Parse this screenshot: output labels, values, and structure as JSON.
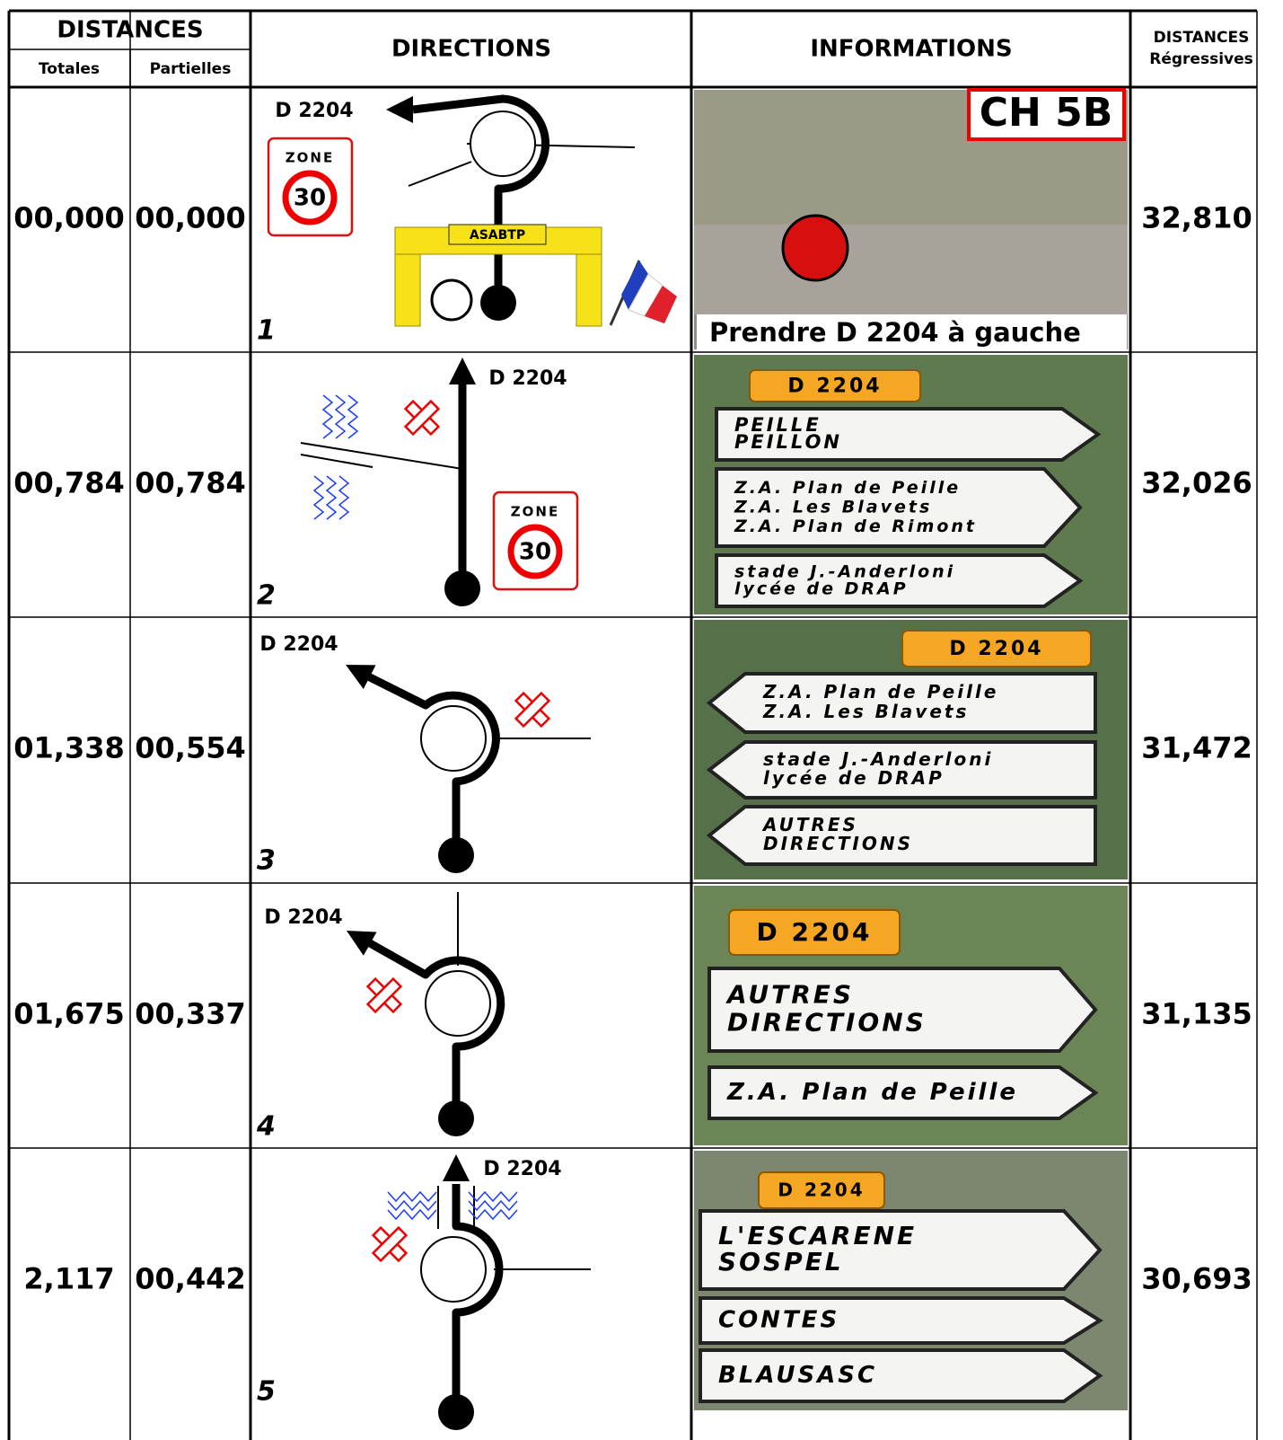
{
  "header": {
    "distances": "DISTANCES",
    "totales": "Totales",
    "partielles": "Partielles",
    "directions": "DIRECTIONS",
    "informations": "INFORMATIONS",
    "regressives": [
      "DISTANCES",
      "Régressives"
    ]
  },
  "rows": [
    {
      "totales": "00,000",
      "partielles": "00,000",
      "number": "1",
      "road": "D 2204",
      "zone": {
        "label": "ZONE",
        "limit": "30"
      },
      "arch": "ASABTP",
      "info": {
        "code": "CH 5B",
        "caption": "Prendre D 2204  à gauche"
      },
      "regressive": "32,810"
    },
    {
      "totales": "00,784",
      "partielles": "00,784",
      "number": "2",
      "road": "D 2204",
      "zone": {
        "label": "ZONE",
        "limit": "30"
      },
      "info": {
        "sign": "D 2204",
        "panels": [
          [
            "PEILLE",
            "PEILLON"
          ],
          [
            "Z.A. Plan de Peille",
            "Z.A. Les Blavets",
            "Z.A. Plan de Rimont"
          ],
          [
            "stade  J.-Anderloni",
            "lycée  de  DRAP"
          ]
        ]
      },
      "regressive": "32,026"
    },
    {
      "totales": "01,338",
      "partielles": "00,554",
      "number": "3",
      "road": "D 2204",
      "info": {
        "sign": "D 2204",
        "panels": [
          [
            "Z.A. Plan de Peille",
            "Z.A. Les Blavets"
          ],
          [
            "stade J.-Anderloni",
            "lycée de DRAP"
          ],
          [
            "AUTRES",
            "DIRECTIONS"
          ]
        ]
      },
      "regressive": "31,472"
    },
    {
      "totales": "01,675",
      "partielles": "00,337",
      "number": "4",
      "road": "D 2204",
      "info": {
        "sign": "D 2204",
        "panels": [
          [
            "AUTRES",
            "DIRECTIONS"
          ],
          [
            "Z.A. Plan de Peille"
          ]
        ]
      },
      "regressive": "31,135"
    },
    {
      "totales": "2,117",
      "partielles": "00,442",
      "number": "5",
      "road": "D 2204",
      "info": {
        "sign": "D 2204",
        "panels": [
          [
            "L'ESCARENE",
            "SOSPEL"
          ],
          [
            "CONTES"
          ],
          [
            "BLAUSASC"
          ]
        ]
      },
      "regressive": "30,693"
    }
  ]
}
